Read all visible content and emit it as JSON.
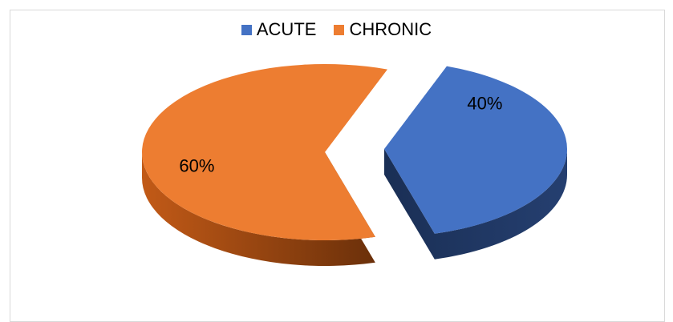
{
  "chart_data": {
    "type": "pie",
    "title": "",
    "categories": [
      "ACUTE",
      "CHRONIC"
    ],
    "values": [
      40,
      60
    ],
    "data_labels": [
      "40%",
      "60%"
    ],
    "colors": [
      "#4472c4",
      "#ed7d31"
    ],
    "side_colors": [
      "#1f3864",
      "#843c0c"
    ],
    "legend_position": "top",
    "style": "3d-exploded"
  }
}
